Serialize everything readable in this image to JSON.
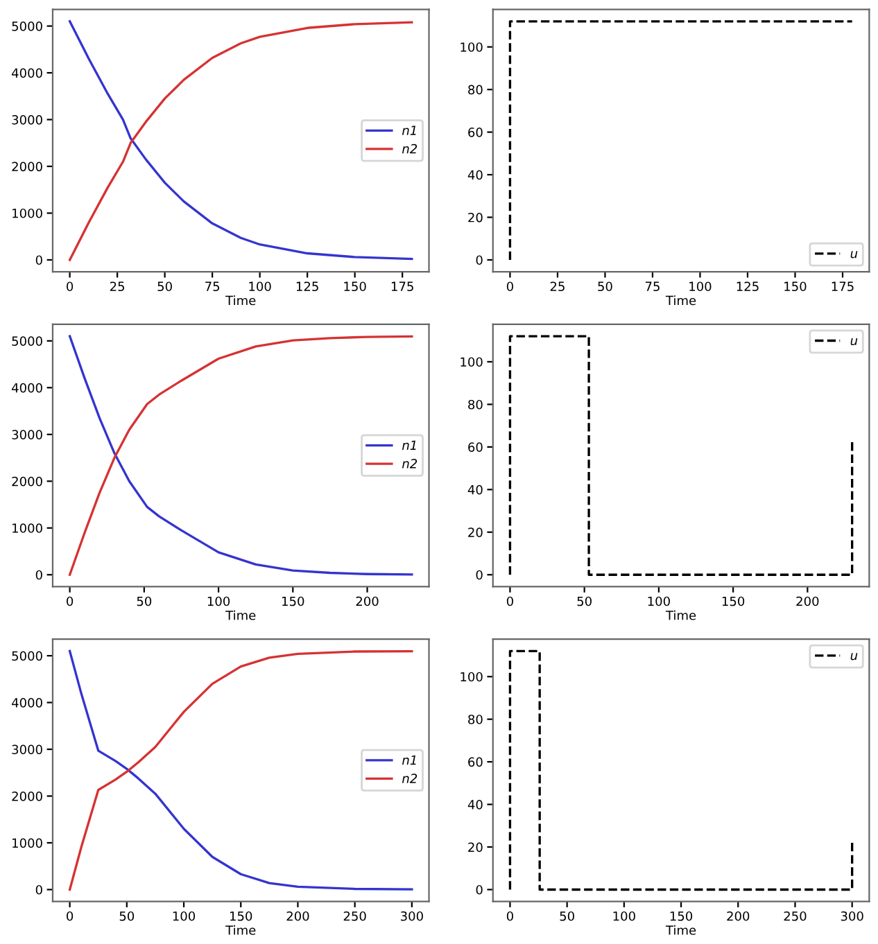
{
  "chart_data": [
    {
      "type": "line",
      "xlabel": "Time",
      "xlim": [
        -9,
        189
      ],
      "xticks": [
        0,
        25,
        50,
        75,
        100,
        125,
        150,
        175
      ],
      "ylim": [
        -255,
        5355
      ],
      "yticks": [
        0,
        1000,
        2000,
        3000,
        4000,
        5000
      ],
      "legend": "center right",
      "grid": false,
      "line_style": "solid",
      "series": [
        {
          "name": "n1",
          "color": "#3434d0",
          "x": [
            0,
            10,
            20,
            28,
            32,
            40,
            50,
            60,
            75,
            90,
            100,
            125,
            150,
            180
          ],
          "values": [
            5100,
            4300,
            3550,
            3000,
            2600,
            2150,
            1650,
            1250,
            780,
            470,
            330,
            140,
            60,
            20
          ]
        },
        {
          "name": "n2",
          "color": "#d63232",
          "x": [
            0,
            10,
            20,
            28,
            32,
            40,
            50,
            60,
            75,
            90,
            100,
            125,
            150,
            180
          ],
          "values": [
            0,
            800,
            1550,
            2100,
            2500,
            2950,
            3450,
            3850,
            4320,
            4630,
            4770,
            4960,
            5040,
            5080
          ]
        }
      ]
    },
    {
      "type": "line",
      "xlabel": "Time",
      "xlim": [
        -9,
        189
      ],
      "xticks": [
        0,
        25,
        50,
        75,
        100,
        125,
        150,
        175
      ],
      "ylim": [
        -5.6,
        117.6
      ],
      "yticks": [
        0,
        20,
        40,
        60,
        80,
        100
      ],
      "legend": "bottom right",
      "grid": false,
      "line_style": "dashed",
      "series": [
        {
          "name": "u",
          "color": "#000000",
          "x": [
            0,
            0,
            180
          ],
          "values": [
            0,
            112,
            112
          ]
        }
      ]
    },
    {
      "type": "line",
      "xlabel": "Time",
      "xlim": [
        -11.5,
        241.5
      ],
      "xticks": [
        0,
        50,
        100,
        150,
        200
      ],
      "ylim": [
        -255,
        5355
      ],
      "yticks": [
        0,
        1000,
        2000,
        3000,
        4000,
        5000
      ],
      "legend": "center right",
      "grid": false,
      "line_style": "solid",
      "series": [
        {
          "name": "n1",
          "color": "#3434d0",
          "x": [
            0,
            10,
            20,
            30,
            40,
            52,
            60,
            75,
            100,
            125,
            150,
            175,
            200,
            230
          ],
          "values": [
            5100,
            4200,
            3350,
            2600,
            2000,
            1450,
            1250,
            950,
            480,
            220,
            90,
            40,
            15,
            5
          ]
        },
        {
          "name": "n2",
          "color": "#d63232",
          "x": [
            0,
            10,
            20,
            30,
            40,
            52,
            60,
            75,
            100,
            125,
            150,
            175,
            200,
            230
          ],
          "values": [
            0,
            900,
            1750,
            2500,
            3100,
            3650,
            3850,
            4150,
            4620,
            4880,
            5010,
            5060,
            5085,
            5095
          ]
        }
      ]
    },
    {
      "type": "line",
      "xlabel": "Time",
      "xlim": [
        -11.5,
        241.5
      ],
      "xticks": [
        0,
        50,
        100,
        150,
        200
      ],
      "ylim": [
        -5.6,
        117.6
      ],
      "yticks": [
        0,
        20,
        40,
        60,
        80,
        100
      ],
      "legend": "top right",
      "grid": false,
      "line_style": "dashed",
      "series": [
        {
          "name": "u",
          "color": "#000000",
          "x": [
            0,
            0,
            53,
            53,
            230,
            230
          ],
          "values": [
            0,
            112,
            112,
            0,
            0,
            63
          ]
        }
      ]
    },
    {
      "type": "line",
      "xlabel": "Time",
      "xlim": [
        -15,
        315
      ],
      "xticks": [
        0,
        50,
        100,
        150,
        200,
        250,
        300
      ],
      "ylim": [
        -255,
        5355
      ],
      "yticks": [
        0,
        1000,
        2000,
        3000,
        4000,
        5000
      ],
      "legend": "center right",
      "grid": false,
      "line_style": "solid",
      "series": [
        {
          "name": "n1",
          "color": "#3434d0",
          "x": [
            0,
            10,
            25,
            40,
            50,
            60,
            75,
            100,
            125,
            150,
            175,
            200,
            250,
            300
          ],
          "values": [
            5100,
            4200,
            2970,
            2750,
            2580,
            2380,
            2050,
            1300,
            700,
            330,
            140,
            60,
            15,
            5
          ]
        },
        {
          "name": "n2",
          "color": "#d63232",
          "x": [
            0,
            10,
            25,
            40,
            50,
            60,
            75,
            100,
            125,
            150,
            175,
            200,
            250,
            300
          ],
          "values": [
            0,
            900,
            2130,
            2350,
            2520,
            2720,
            3050,
            3800,
            4400,
            4770,
            4960,
            5040,
            5090,
            5095
          ]
        }
      ]
    },
    {
      "type": "line",
      "xlabel": "Time",
      "xlim": [
        -15,
        315
      ],
      "xticks": [
        0,
        50,
        100,
        150,
        200,
        250,
        300
      ],
      "ylim": [
        -5.6,
        117.6
      ],
      "yticks": [
        0,
        20,
        40,
        60,
        80,
        100
      ],
      "legend": "top right",
      "grid": false,
      "line_style": "dashed",
      "series": [
        {
          "name": "u",
          "color": "#000000",
          "x": [
            0,
            0,
            26,
            26,
            300,
            300
          ],
          "values": [
            0,
            112,
            112,
            0,
            0,
            22
          ]
        }
      ]
    }
  ]
}
